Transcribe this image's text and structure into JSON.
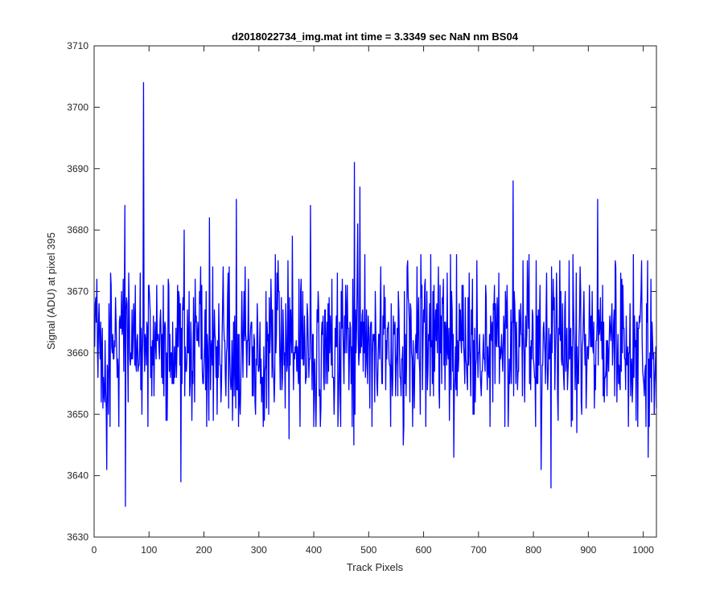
{
  "chart_data": {
    "type": "line",
    "title": "d2018022734_img.mat int time = 3.3349 sec  NaN nm BS04",
    "xlabel": "Track Pixels",
    "ylabel": "Signal (ADU) at pixel 395",
    "xlim": [
      0,
      1024
    ],
    "ylim": [
      3630,
      3710
    ],
    "xticks": [
      0,
      100,
      200,
      300,
      400,
      500,
      600,
      700,
      800,
      900,
      1000
    ],
    "yticks": [
      3630,
      3640,
      3650,
      3660,
      3670,
      3680,
      3690,
      3700,
      3710
    ],
    "grid": false,
    "series": [
      {
        "color": "#0000ff",
        "x_start": 1,
        "x_step": 1,
        "base": 3661,
        "peaks": [
          {
            "x": 23,
            "y": 3641
          },
          {
            "x": 56,
            "y": 3684
          },
          {
            "x": 57,
            "y": 3635
          },
          {
            "x": 90,
            "y": 3704
          },
          {
            "x": 158,
            "y": 3639
          },
          {
            "x": 164,
            "y": 3680
          },
          {
            "x": 210,
            "y": 3682
          },
          {
            "x": 259,
            "y": 3685
          },
          {
            "x": 355,
            "y": 3646
          },
          {
            "x": 361,
            "y": 3679
          },
          {
            "x": 394,
            "y": 3684
          },
          {
            "x": 473,
            "y": 3645
          },
          {
            "x": 474,
            "y": 3691
          },
          {
            "x": 480,
            "y": 3681
          },
          {
            "x": 484,
            "y": 3687
          },
          {
            "x": 563,
            "y": 3645
          },
          {
            "x": 655,
            "y": 3643
          },
          {
            "x": 763,
            "y": 3688
          },
          {
            "x": 814,
            "y": 3641
          },
          {
            "x": 832,
            "y": 3638
          },
          {
            "x": 879,
            "y": 3647
          },
          {
            "x": 917,
            "y": 3685
          },
          {
            "x": 1009,
            "y": 3643
          }
        ]
      }
    ]
  }
}
